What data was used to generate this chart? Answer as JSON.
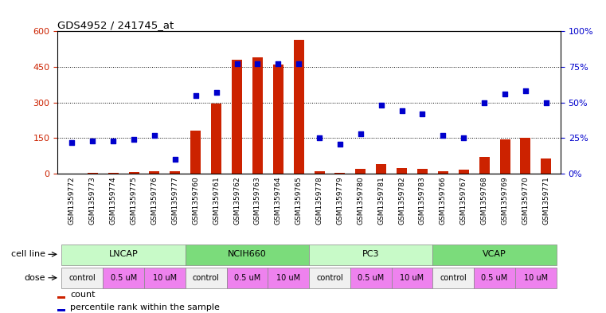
{
  "title": "GDS4952 / 241745_at",
  "samples": [
    "GSM1359772",
    "GSM1359773",
    "GSM1359774",
    "GSM1359775",
    "GSM1359776",
    "GSM1359777",
    "GSM1359760",
    "GSM1359761",
    "GSM1359762",
    "GSM1359763",
    "GSM1359764",
    "GSM1359765",
    "GSM1359778",
    "GSM1359779",
    "GSM1359780",
    "GSM1359781",
    "GSM1359782",
    "GSM1359783",
    "GSM1359766",
    "GSM1359767",
    "GSM1359768",
    "GSM1359769",
    "GSM1359770",
    "GSM1359771"
  ],
  "counts": [
    2,
    3,
    5,
    6,
    10,
    12,
    182,
    297,
    480,
    490,
    460,
    565,
    10,
    5,
    20,
    40,
    25,
    20,
    10,
    18,
    70,
    145,
    152,
    65
  ],
  "percentile": [
    22,
    23,
    23,
    24,
    27,
    10,
    55,
    57,
    77,
    77,
    77,
    77,
    25,
    21,
    28,
    48,
    44,
    42,
    27,
    25,
    50,
    56,
    58,
    50
  ],
  "cell_lines": [
    {
      "name": "LNCAP",
      "start": 0,
      "end": 6,
      "color": "#c8fac8"
    },
    {
      "name": "NCIH660",
      "start": 6,
      "end": 12,
      "color": "#7bdc7b"
    },
    {
      "name": "PC3",
      "start": 12,
      "end": 18,
      "color": "#c8fac8"
    },
    {
      "name": "VCAP",
      "start": 18,
      "end": 24,
      "color": "#7bdc7b"
    }
  ],
  "dose_structure": [
    {
      "label": "control",
      "start": 0,
      "end": 2,
      "color": "#f0f0f0"
    },
    {
      "label": "0.5 uM",
      "start": 2,
      "end": 4,
      "color": "#ee82ee"
    },
    {
      "label": "10 uM",
      "start": 4,
      "end": 6,
      "color": "#ee82ee"
    },
    {
      "label": "control",
      "start": 6,
      "end": 8,
      "color": "#f0f0f0"
    },
    {
      "label": "0.5 uM",
      "start": 8,
      "end": 10,
      "color": "#ee82ee"
    },
    {
      "label": "10 uM",
      "start": 10,
      "end": 12,
      "color": "#ee82ee"
    },
    {
      "label": "control",
      "start": 12,
      "end": 14,
      "color": "#f0f0f0"
    },
    {
      "label": "0.5 uM",
      "start": 14,
      "end": 16,
      "color": "#ee82ee"
    },
    {
      "label": "10 uM",
      "start": 16,
      "end": 18,
      "color": "#ee82ee"
    },
    {
      "label": "control",
      "start": 18,
      "end": 20,
      "color": "#f0f0f0"
    },
    {
      "label": "0.5 uM",
      "start": 20,
      "end": 22,
      "color": "#ee82ee"
    },
    {
      "label": "10 uM",
      "start": 22,
      "end": 24,
      "color": "#ee82ee"
    }
  ],
  "ylim_left": [
    0,
    600
  ],
  "ylim_right": [
    0,
    100
  ],
  "yticks_left": [
    0,
    150,
    300,
    450,
    600
  ],
  "yticks_right": [
    0,
    25,
    50,
    75,
    100
  ],
  "ytick_right_labels": [
    "0%",
    "25%",
    "50%",
    "75%",
    "100%"
  ],
  "hgrid_vals": [
    150,
    300,
    450
  ],
  "bar_color": "#cc2200",
  "scatter_color": "#0000cc",
  "bar_width": 0.5,
  "xlim": [
    -0.7,
    23.7
  ]
}
